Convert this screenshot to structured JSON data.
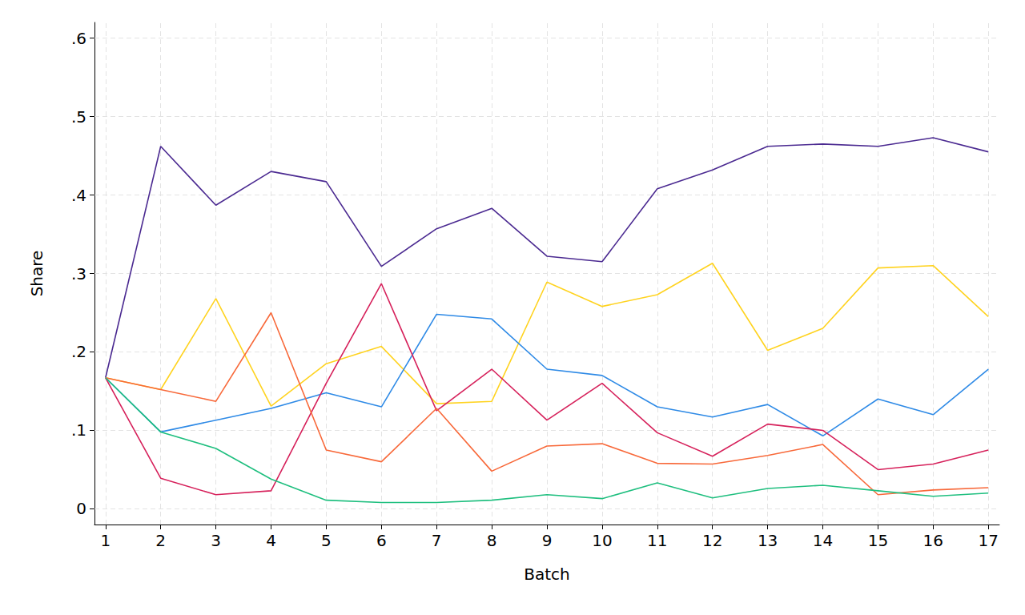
{
  "chart_data": {
    "type": "line",
    "x_label": "Batch",
    "y_label": "Share",
    "x": [
      1,
      2,
      3,
      4,
      5,
      6,
      7,
      8,
      9,
      10,
      11,
      12,
      13,
      14,
      15,
      16,
      17
    ],
    "xlim": [
      0.8,
      17.2
    ],
    "xticks": [
      1,
      2,
      3,
      4,
      5,
      6,
      7,
      8,
      9,
      10,
      11,
      12,
      13,
      14,
      15,
      16,
      17
    ],
    "ylim": [
      -0.02,
      0.62
    ],
    "yticks": [
      0,
      {
        "value": 0.1,
        "label": ".1"
      },
      {
        "value": 0.2,
        "label": ".2"
      },
      {
        "value": 0.3,
        "label": ".3"
      },
      {
        "value": 0.4,
        "label": ".4"
      },
      {
        "value": 0.5,
        "label": ".5"
      },
      {
        "value": 0.6,
        "label": ".6"
      }
    ],
    "grid": true,
    "series": [
      {
        "color": "#4b2a91",
        "values": [
          0.167,
          0.462,
          0.387,
          0.43,
          0.417,
          0.309,
          0.357,
          0.383,
          0.322,
          0.315,
          0.408,
          0.432,
          0.462,
          0.465,
          0.462,
          0.473,
          0.455
        ]
      },
      {
        "color": "#ffd320",
        "values": [
          0.167,
          0.152,
          0.268,
          0.131,
          0.185,
          0.207,
          0.134,
          0.137,
          0.289,
          0.258,
          0.273,
          0.313,
          0.202,
          0.23,
          0.307,
          0.31,
          0.245
        ]
      },
      {
        "color": "#2e8ae6",
        "values": [
          0.167,
          0.098,
          0.113,
          0.128,
          0.148,
          0.13,
          0.248,
          0.242,
          0.178,
          0.17,
          0.13,
          0.117,
          0.133,
          0.093,
          0.14,
          0.12,
          0.178
        ]
      },
      {
        "color": "#d6215b",
        "values": [
          0.167,
          0.039,
          0.018,
          0.023,
          0.16,
          0.287,
          0.125,
          0.178,
          0.113,
          0.16,
          0.097,
          0.067,
          0.108,
          0.1,
          0.05,
          0.057,
          0.075
        ]
      },
      {
        "color": "#f8693a",
        "values": [
          0.167,
          0.152,
          0.137,
          0.25,
          0.075,
          0.06,
          0.128,
          0.048,
          0.08,
          0.083,
          0.058,
          0.057,
          0.068,
          0.082,
          0.018,
          0.024,
          0.027
        ]
      },
      {
        "color": "#1fbf7f",
        "values": [
          0.167,
          0.098,
          0.077,
          0.038,
          0.011,
          0.008,
          0.008,
          0.011,
          0.018,
          0.013,
          0.033,
          0.014,
          0.026,
          0.03,
          0.023,
          0.016,
          0.02
        ]
      }
    ]
  }
}
